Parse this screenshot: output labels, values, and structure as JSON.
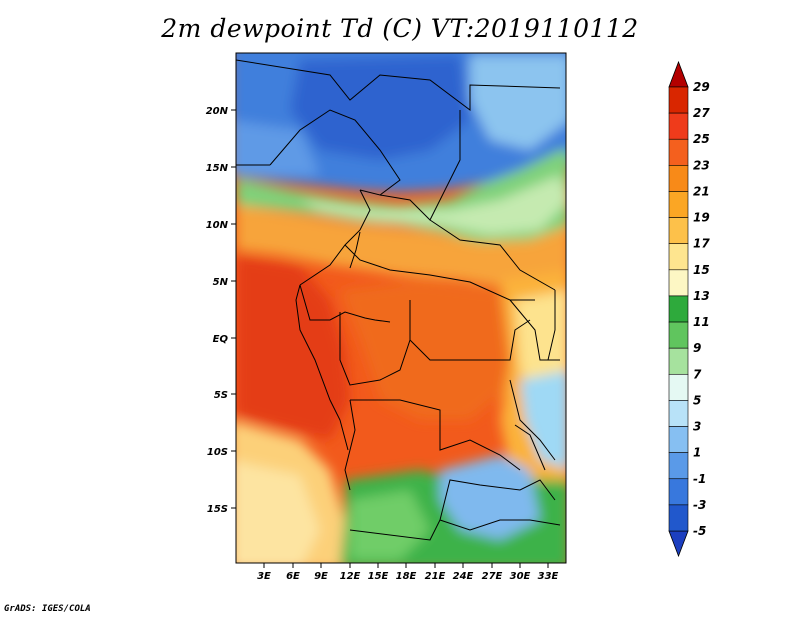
{
  "title": "2m dewpoint Td (C) VT:2019110112",
  "credit": "GrADS: IGES/COLA",
  "map": {
    "lat_ticks": [
      "20N",
      "15N",
      "10N",
      "5N",
      "EQ",
      "5S",
      "10S",
      "15S"
    ],
    "lon_ticks": [
      "3E",
      "6E",
      "9E",
      "12E",
      "15E",
      "18E",
      "21E",
      "24E",
      "27E",
      "30E",
      "33E"
    ],
    "lat_range": [
      -19.5,
      24.5
    ],
    "lon_range": [
      0.5,
      34.5
    ]
  },
  "colorbar": {
    "labels": [
      "29",
      "27",
      "25",
      "23",
      "21",
      "19",
      "17",
      "15",
      "13",
      "11",
      "9",
      "7",
      "5",
      "3",
      "1",
      "-1",
      "-3",
      "-5"
    ],
    "colors": [
      "#b30000",
      "#d92600",
      "#ef3b1b",
      "#f4601e",
      "#f88a18",
      "#fba624",
      "#fdc14a",
      "#fee58f",
      "#fdf7c4",
      "#2eaa3c",
      "#60c55e",
      "#a6e29e",
      "#e5f9f3",
      "#b8e2f8",
      "#86bff2",
      "#5a9ae8",
      "#3878dd",
      "#2158cc",
      "#1c3fc0"
    ]
  }
}
